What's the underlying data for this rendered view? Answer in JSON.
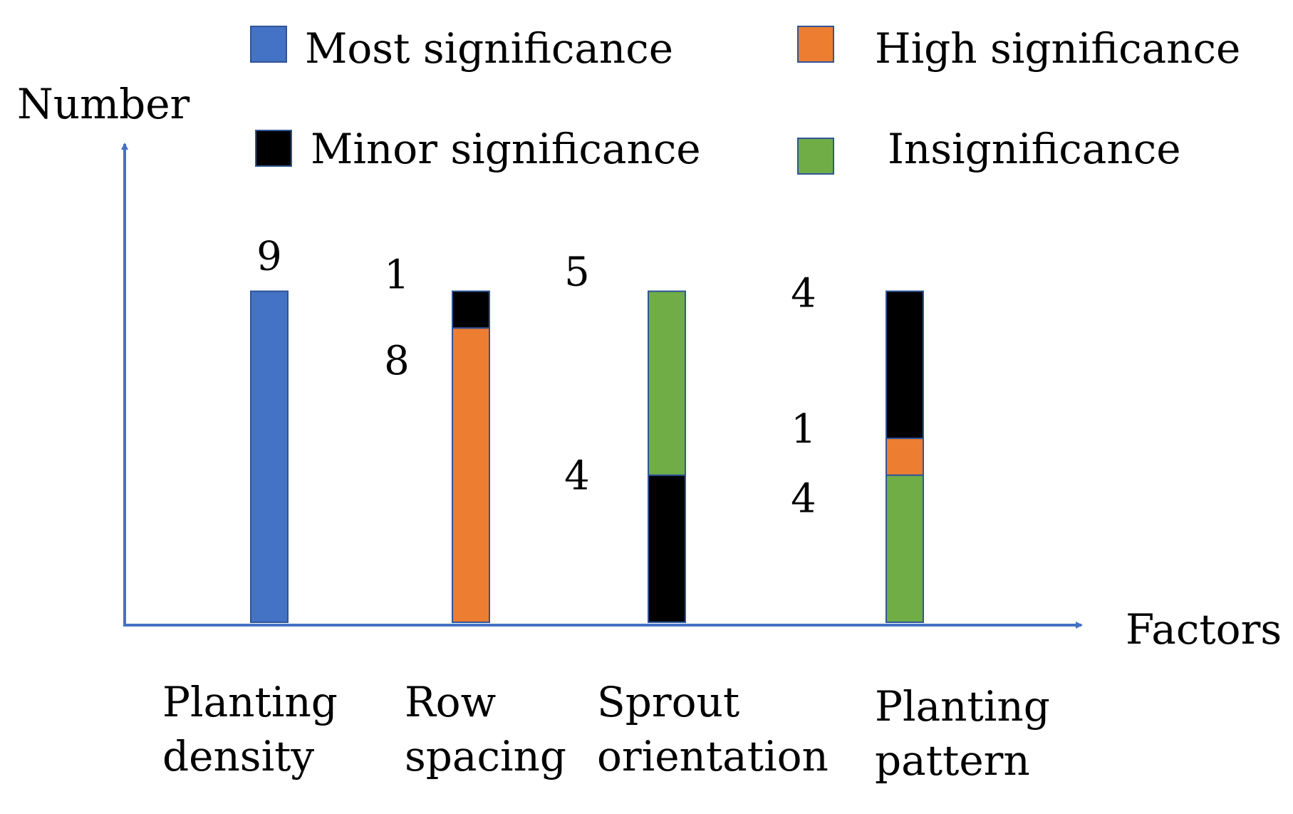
{
  "chart_data": {
    "type": "bar",
    "stacked": true,
    "ylabel": "Number",
    "xlabel": "Factors",
    "categories": [
      "Planting density",
      "Row spacing",
      "Sprout orientation",
      "Planting pattern"
    ],
    "category_lines": [
      [
        "Planting",
        "density"
      ],
      [
        "Row",
        "spacing"
      ],
      [
        "Sprout",
        "orientation"
      ],
      [
        "Planting",
        "pattern"
      ]
    ],
    "series": [
      {
        "name": "Most significance",
        "color": "#4472C4",
        "values": [
          9,
          0,
          0,
          0
        ]
      },
      {
        "name": "High significance",
        "color": "#ED7D31",
        "values": [
          0,
          8,
          0,
          1
        ]
      },
      {
        "name": "Minor significance",
        "color": "#000000",
        "values": [
          0,
          1,
          4,
          4
        ]
      },
      {
        "name": "Insignificance",
        "color": "#70AD47",
        "values": [
          0,
          0,
          5,
          4
        ]
      }
    ],
    "stack_order": [
      [
        "Most significance"
      ],
      [
        "High significance",
        "Minor significance"
      ],
      [
        "Minor significance",
        "Insignificance"
      ],
      [
        "Insignificance",
        "High significance",
        "Minor significance"
      ]
    ],
    "ylim": [
      0,
      10
    ],
    "legend_position": "top",
    "grid": false,
    "axis_color": "#4472C4",
    "bar_border_color": "#2F5597"
  }
}
